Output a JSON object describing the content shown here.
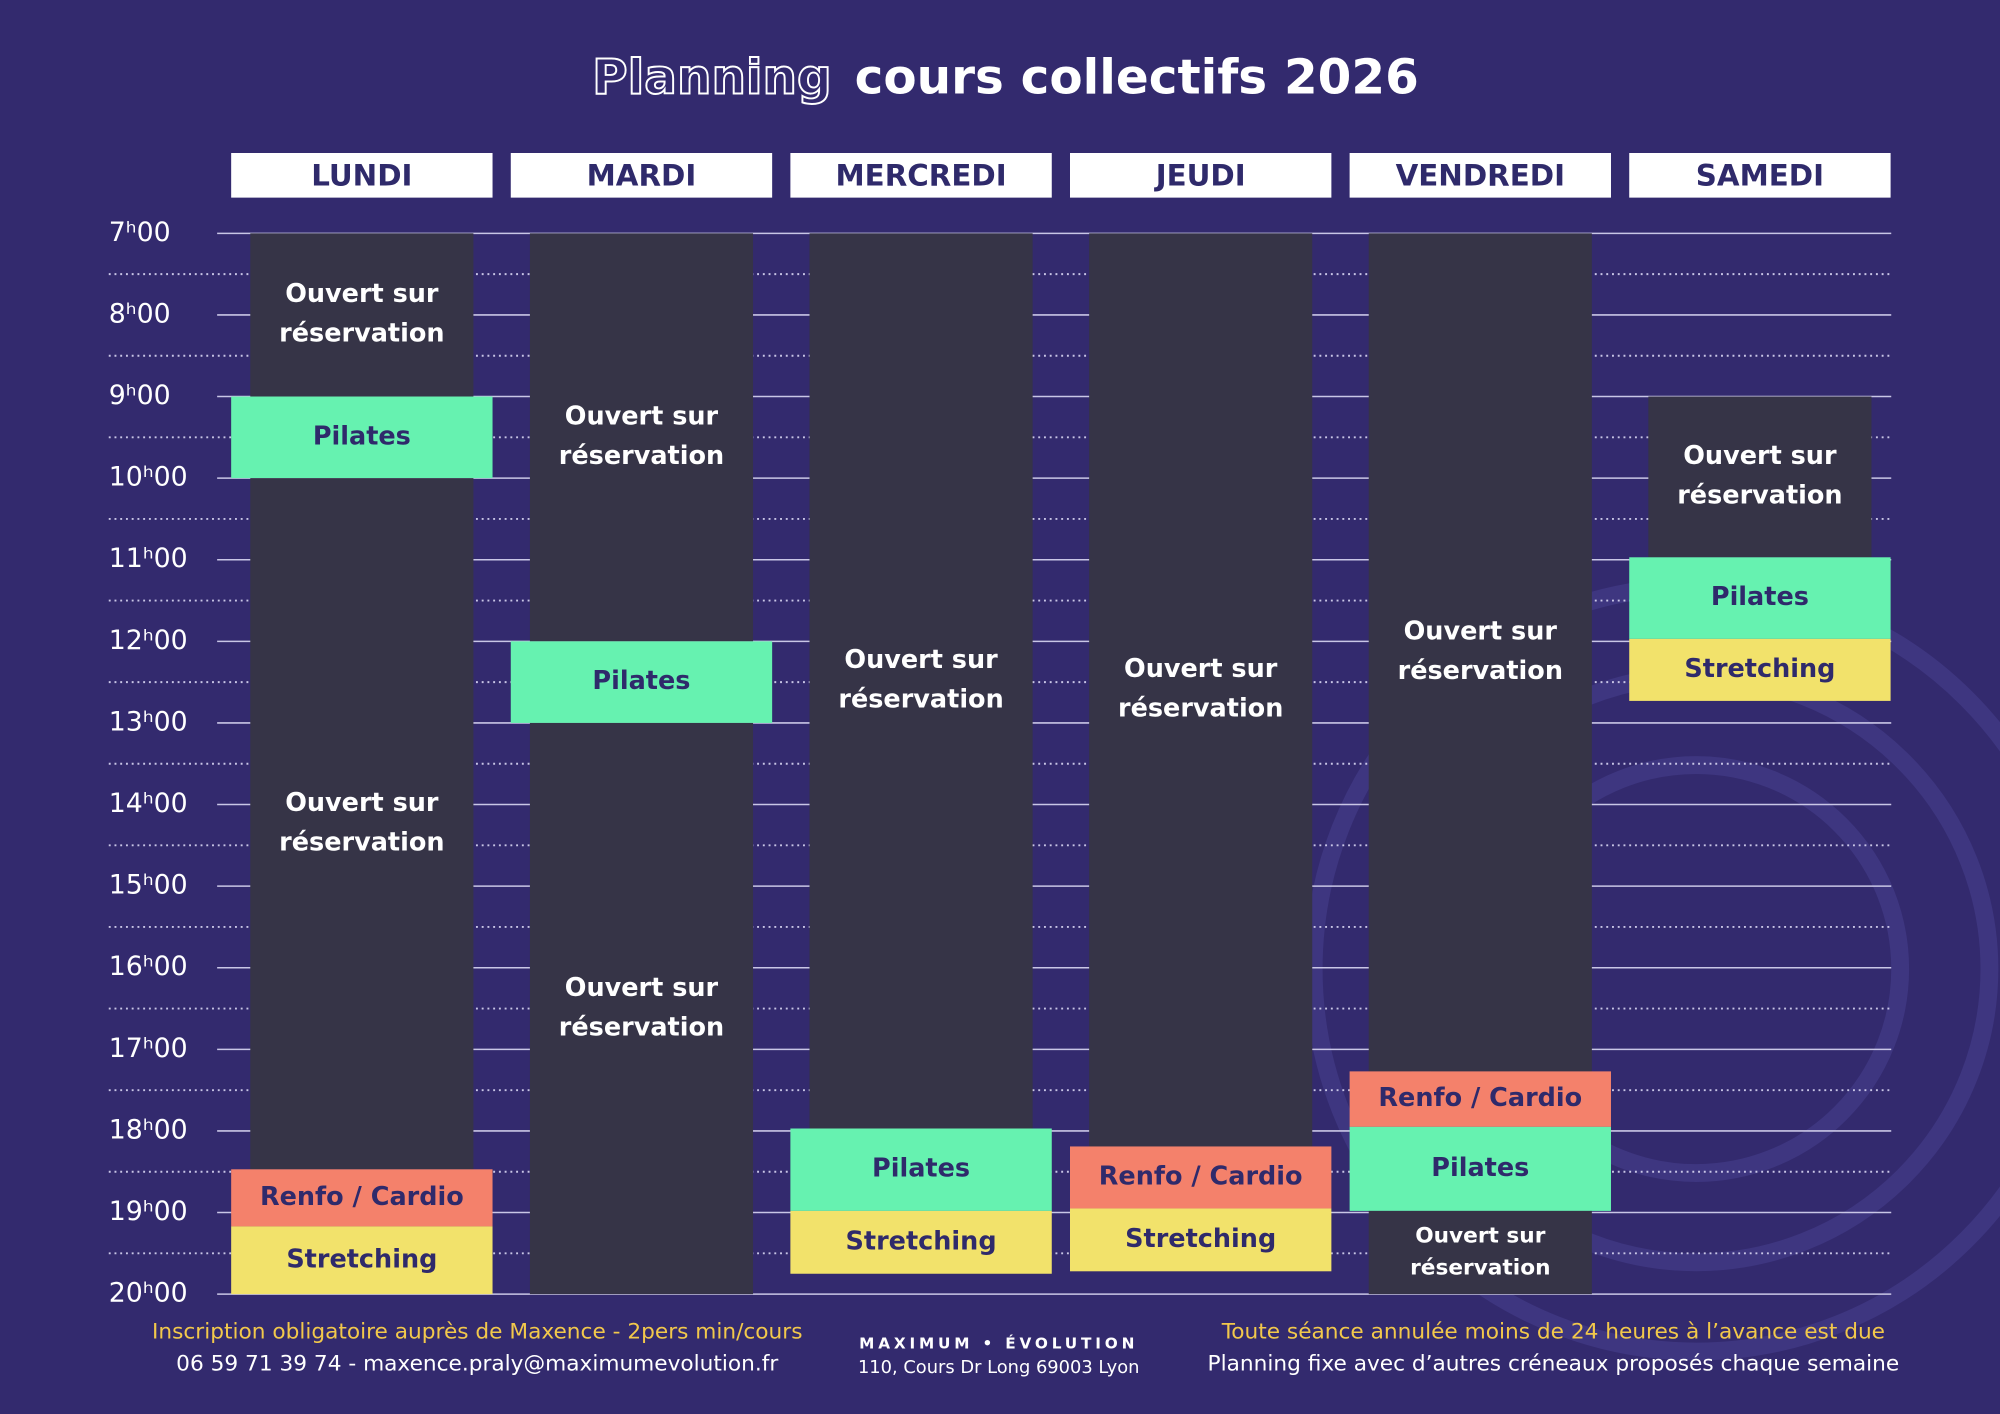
{
  "header": {
    "title_outline": "Planning",
    "title": "cours collectifs 2026"
  },
  "schedule": {
    "times": [
      "7ʰ00",
      "8ʰ00",
      "9ʰ00",
      "10ʰ00",
      "11ʰ00",
      "12ʰ00",
      "13ʰ00",
      "14ʰ00",
      "15ʰ00",
      "16ʰ00",
      "17ʰ00",
      "18ʰ00",
      "19ʰ00",
      "20ʰ00"
    ],
    "days": [
      {
        "name": "LUNDI",
        "slots": [
          {
            "lines": [
              "Ouvert sur",
              "réservation"
            ]
          },
          {
            "lines": [
              "Pilates"
            ]
          },
          {
            "lines": [
              "Ouvert sur",
              "réservation"
            ]
          },
          {
            "lines": [
              "Renfo / Cardio"
            ]
          },
          {
            "lines": [
              "Stretching"
            ]
          }
        ]
      },
      {
        "name": "MARDI",
        "slots": [
          {
            "lines": [
              "Ouvert sur",
              "réservation"
            ]
          },
          {
            "lines": [
              "Pilates"
            ]
          },
          {
            "lines": [
              "Ouvert sur",
              "réservation"
            ]
          }
        ]
      },
      {
        "name": "MERCREDI",
        "slots": [
          {
            "lines": [
              "Ouvert sur",
              "réservation"
            ]
          },
          {
            "lines": [
              "Pilates"
            ]
          },
          {
            "lines": [
              "Stretching"
            ]
          }
        ]
      },
      {
        "name": "JEUDI",
        "slots": [
          {
            "lines": [
              "Ouvert sur",
              "réservation"
            ]
          },
          {
            "lines": [
              "Renfo / Cardio"
            ]
          },
          {
            "lines": [
              "Stretching"
            ]
          }
        ]
      },
      {
        "name": "VENDREDI",
        "slots": [
          {
            "lines": [
              "Ouvert sur",
              "réservation"
            ]
          },
          {
            "lines": [
              "Renfo / Cardio"
            ]
          },
          {
            "lines": [
              "Pilates"
            ]
          },
          {
            "lines": [
              "Ouvert sur",
              "réservation"
            ]
          }
        ]
      },
      {
        "name": "SAMEDI",
        "slots": [
          {
            "lines": [
              "Ouvert sur",
              "réservation"
            ]
          },
          {
            "lines": [
              "Pilates"
            ]
          },
          {
            "lines": [
              "Stretching"
            ]
          }
        ]
      }
    ]
  },
  "footer": {
    "left": [
      "Inscription obligatoire auprès de Maxence - 2pers min/cours",
      "06 59 71 39 74 - maxence.praly@maximumevolution.fr"
    ],
    "brand": "MAXIMUM • ÉVOLUTION",
    "address": "110, Cours Dr Long 69003 Lyon",
    "right": [
      "Toute séance annulée moins de 24 heures à l’avance est due",
      "Planning fixe avec d’autres créneaux proposés chaque semaine"
    ]
  }
}
